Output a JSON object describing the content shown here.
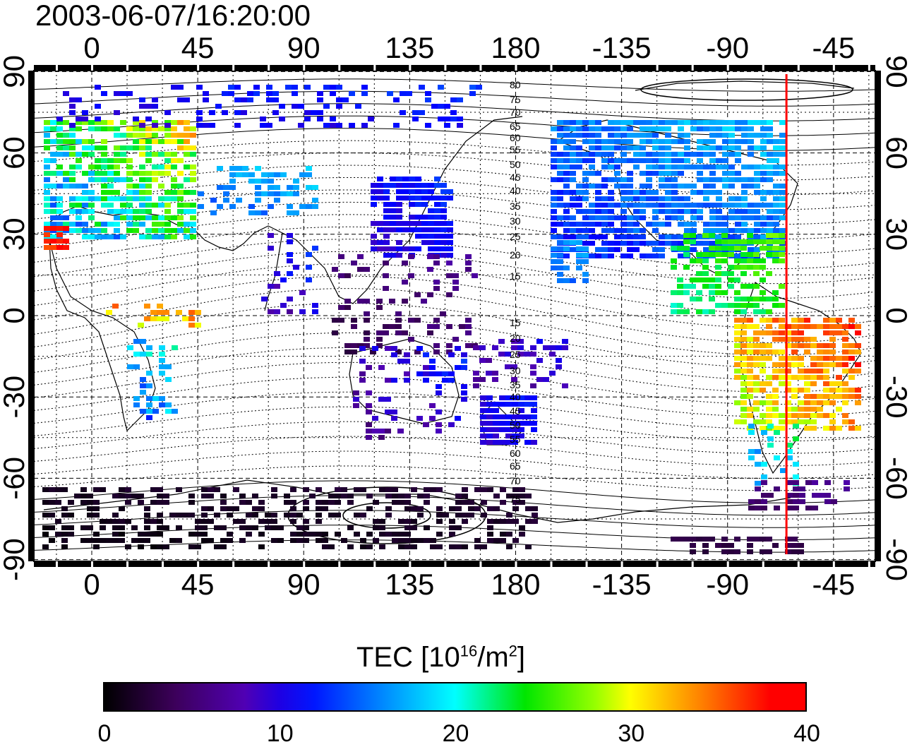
{
  "title": "2003-06-07/16:20:00",
  "map": {
    "lon_ticks": [
      "0",
      "45",
      "90",
      "135",
      "180",
      "-135",
      "-90",
      "-45"
    ],
    "lat_ticks_left": [
      "90",
      "60",
      "30",
      "0",
      "-30",
      "-60",
      "-90"
    ],
    "lat_ticks_right": [
      "90",
      "60",
      "30",
      "0",
      "-30",
      "-60",
      "-90"
    ],
    "magnetic_latitude_labels": [
      "80",
      "75",
      "70",
      "65",
      "60",
      "55",
      "50",
      "45",
      "40",
      "35",
      "30",
      "25",
      "20",
      "15",
      "15",
      "20",
      "25",
      "30",
      "35",
      "40",
      "45",
      "50",
      "55",
      "60",
      "65",
      "70",
      "75"
    ],
    "meridian_marker_color": "#ff0000",
    "meridian_marker_longitude": -65
  },
  "colorbar": {
    "title_main": "TEC  [10",
    "title_exp": "16",
    "title_unit": "/m",
    "title_unit_exp": "2",
    "title_close": "]",
    "labels": [
      "0",
      "10",
      "20",
      "30",
      "40"
    ],
    "min": 0,
    "max": 40,
    "colormap": "jet-like: black, purple, blue, cyan, green, yellow, orange, red"
  }
}
